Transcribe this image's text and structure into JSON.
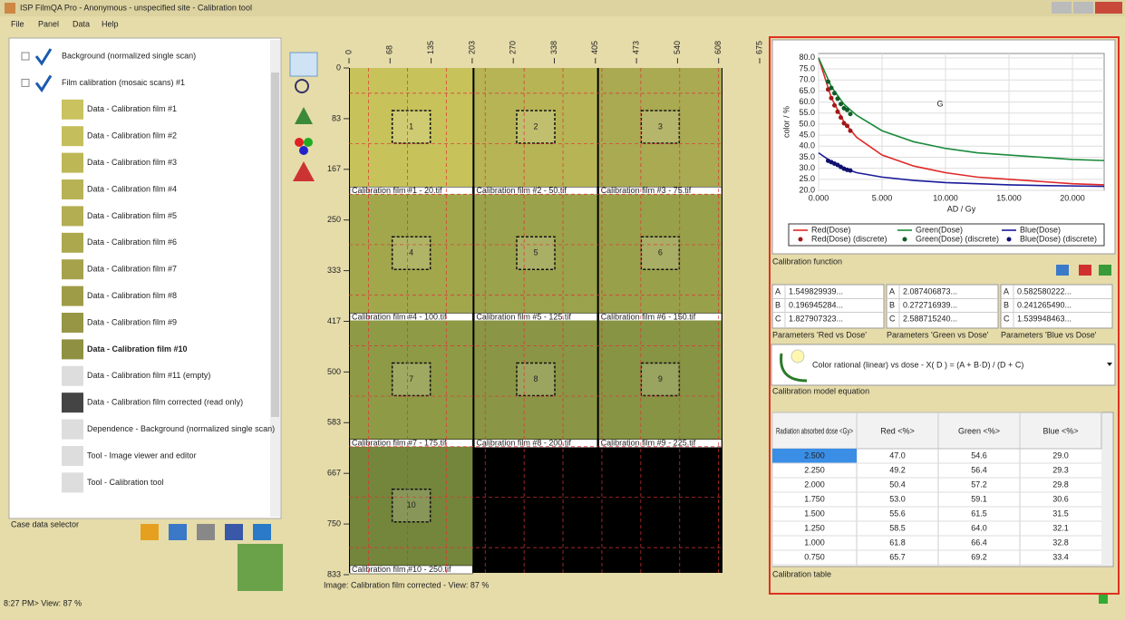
{
  "window": {
    "title": "ISP FilmQA Pro - Anonymous - unspecified site - Calibration tool",
    "menu": [
      "File",
      "Panel",
      "Data",
      "Help"
    ],
    "status": "8:27 PM> View: 87 %"
  },
  "tree": {
    "nodes": [
      {
        "label": "Background (normalized single scan)",
        "children": []
      },
      {
        "label": "Film calibration (mosaic scans) #1",
        "children": [
          "Data - Calibration film #1",
          "Data - Calibration film #2",
          "Data - Calibration film #3",
          "Data - Calibration film #4",
          "Data - Calibration film #5",
          "Data - Calibration film #6",
          "Data - Calibration film #7",
          "Data - Calibration film #8",
          "Data - Calibration film #9",
          "Data - Calibration film #10",
          "Data - Calibration film #11 (empty)",
          "Data - Calibration film corrected (read only)",
          "Dependence - Background (normalized single scan)",
          "Tool - Image viewer and editor",
          "Tool - Calibration tool"
        ]
      }
    ],
    "label": "Case data selector"
  },
  "viewer": {
    "hruler": [
      "0",
      "68",
      "135",
      "203",
      "270",
      "338",
      "405",
      "473",
      "540",
      "608",
      "675"
    ],
    "vruler": [
      "0",
      "83",
      "167",
      "250",
      "333",
      "417",
      "500",
      "583",
      "667",
      "750",
      "833"
    ],
    "films": [
      {
        "roi": "1",
        "caption": "Calibration film #1 - 20.tif"
      },
      {
        "roi": "2",
        "caption": "Calibration film #2 - 50.tif"
      },
      {
        "roi": "3",
        "caption": "Calibration film #3 - 75.tif"
      },
      {
        "roi": "4",
        "caption": "Calibration film #4 - 100.tif"
      },
      {
        "roi": "5",
        "caption": "Calibration film #5 - 125.tif"
      },
      {
        "roi": "6",
        "caption": "Calibration film #6 - 150.tif"
      },
      {
        "roi": "7",
        "caption": "Calibration film #7 - 175.tif"
      },
      {
        "roi": "8",
        "caption": "Calibration film #8 - 200.tif"
      },
      {
        "roi": "9",
        "caption": "Calibration film #9 - 225.tif"
      },
      {
        "roi": "10",
        "caption": "Calibration film #10 - 250.tif"
      }
    ],
    "status": "Image: Calibration film corrected - View: 87 %"
  },
  "calibration": {
    "function_label": "Calibration function",
    "parameters": [
      {
        "label": "Parameters 'Red vs Dose'",
        "rows": [
          [
            "A",
            "1.549829939..."
          ],
          [
            "B",
            "0.196945284..."
          ],
          [
            "C",
            "1.827907323..."
          ]
        ]
      },
      {
        "label": "Parameters 'Green vs Dose'",
        "rows": [
          [
            "A",
            "2.087406873..."
          ],
          [
            "B",
            "0.272716939..."
          ],
          [
            "C",
            "2.588715240..."
          ]
        ]
      },
      {
        "label": "Parameters 'Blue vs Dose'",
        "rows": [
          [
            "A",
            "0.582580222..."
          ],
          [
            "B",
            "0.241265490..."
          ],
          [
            "C",
            "1.539948463..."
          ]
        ]
      }
    ],
    "equation": "Color rational (linear) vs dose - X( D ) = (A + B·D) / (D + C)",
    "equation_label": "Calibration model equation",
    "table": {
      "columns": [
        "Radiation absorbed dose <Gy>",
        "Red <%>",
        "Green <%>",
        "Blue <%>"
      ],
      "rows": [
        [
          "2.500",
          "47.0",
          "54.6",
          "29.0"
        ],
        [
          "2.250",
          "49.2",
          "56.4",
          "29.3"
        ],
        [
          "2.000",
          "50.4",
          "57.2",
          "29.8"
        ],
        [
          "1.750",
          "53.0",
          "59.1",
          "30.6"
        ],
        [
          "1.500",
          "55.6",
          "61.5",
          "31.5"
        ],
        [
          "1.250",
          "58.5",
          "64.0",
          "32.1"
        ],
        [
          "1.000",
          "61.8",
          "66.4",
          "32.8"
        ],
        [
          "0.750",
          "65.7",
          "69.2",
          "33.4"
        ]
      ]
    },
    "table_label": "Calibration table"
  },
  "chart_data": {
    "type": "line",
    "annotation": "G",
    "x_label": "AD / Gy",
    "y_label": "color / %",
    "grid": true,
    "xlim": [
      0,
      22.5
    ],
    "ylim": [
      20,
      82
    ],
    "xticks": [
      {
        "value": 0,
        "label": "0.000"
      },
      {
        "value": 5,
        "label": "5.000"
      },
      {
        "value": 10,
        "label": "10.000"
      },
      {
        "value": 15,
        "label": "15.000"
      },
      {
        "value": 20,
        "label": "20.000"
      }
    ],
    "yticks": [
      {
        "value": 20,
        "label": "20.0"
      },
      {
        "value": 25,
        "label": "25.0"
      },
      {
        "value": 30,
        "label": "30.0"
      },
      {
        "value": 35,
        "label": "35.0"
      },
      {
        "value": 40,
        "label": "40.0"
      },
      {
        "value": 45,
        "label": "45.0"
      },
      {
        "value": 50,
        "label": "50.0"
      },
      {
        "value": 55,
        "label": "55.0"
      },
      {
        "value": 60,
        "label": "60.0"
      },
      {
        "value": 65,
        "label": "65.0"
      },
      {
        "value": 70,
        "label": "70.0"
      },
      {
        "value": 75,
        "label": "75.0"
      },
      {
        "value": 80,
        "label": "80.0"
      }
    ],
    "series": [
      {
        "name": "Red(Dose)",
        "color": "#e02828",
        "mode": "line",
        "x": [
          0,
          1,
          2,
          3,
          5,
          7.5,
          10,
          12.5,
          15,
          17.5,
          20,
          22.5
        ],
        "values": [
          80,
          62,
          51,
          44,
          36,
          31,
          28,
          26,
          25,
          24,
          23,
          22.5
        ]
      },
      {
        "name": "Green(Dose)",
        "color": "#1a8a3a",
        "mode": "line",
        "x": [
          0,
          1,
          2,
          3,
          5,
          7.5,
          10,
          12.5,
          15,
          17.5,
          20,
          22.5
        ],
        "values": [
          80,
          67,
          59,
          54,
          47,
          42,
          39,
          37,
          36,
          35,
          34,
          33.5
        ]
      },
      {
        "name": "Blue(Dose)",
        "color": "#1a1a9a",
        "mode": "line",
        "x": [
          0,
          1,
          2,
          3,
          5,
          7.5,
          10,
          12.5,
          15,
          17.5,
          20,
          22.5
        ],
        "values": [
          37,
          33,
          30,
          28,
          26,
          24.5,
          23.5,
          23,
          22.5,
          22.2,
          22,
          21.8
        ]
      },
      {
        "name": "Red(Dose) (discrete)",
        "color": "#a01818",
        "mode": "markers",
        "x": [
          0.75,
          1,
          1.25,
          1.5,
          1.75,
          2,
          2.25,
          2.5
        ],
        "values": [
          65.7,
          61.8,
          58.5,
          55.6,
          53.0,
          50.4,
          49.2,
          47.0
        ]
      },
      {
        "name": "Green(Dose) (discrete)",
        "color": "#0e5e26",
        "mode": "markers",
        "x": [
          0.75,
          1,
          1.25,
          1.5,
          1.75,
          2,
          2.25,
          2.5
        ],
        "values": [
          69.2,
          66.4,
          64.0,
          61.5,
          59.1,
          57.2,
          56.4,
          54.6
        ]
      },
      {
        "name": "Blue(Dose) (discrete)",
        "color": "#101070",
        "mode": "markers",
        "x": [
          0.75,
          1,
          1.25,
          1.5,
          1.75,
          2,
          2.25,
          2.5
        ],
        "values": [
          33.4,
          32.8,
          32.1,
          31.5,
          30.6,
          29.8,
          29.3,
          29.0
        ]
      }
    ]
  }
}
